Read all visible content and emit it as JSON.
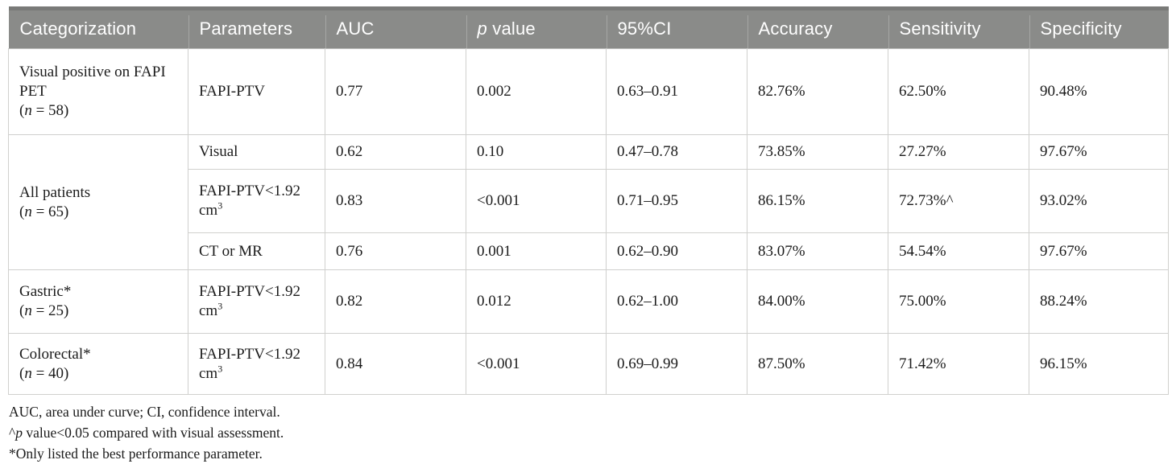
{
  "table": {
    "headers": [
      [
        {
          "t": "Categorization"
        }
      ],
      [
        {
          "t": "Parameters"
        }
      ],
      [
        {
          "t": "AUC"
        }
      ],
      [
        {
          "t": "p",
          "i": true
        },
        {
          "t": " value"
        }
      ],
      [
        {
          "t": "95%CI"
        }
      ],
      [
        {
          "t": "Accuracy"
        }
      ],
      [
        {
          "t": "Sensitivity"
        }
      ],
      [
        {
          "t": "Specificity"
        }
      ]
    ],
    "groups": [
      {
        "category": "Visual positive on FAPI PET",
        "n_label": "(n = 58)",
        "rows": [
          {
            "parameter": "FAPI-PTV",
            "auc": "0.77",
            "p_value": "0.002",
            "ci_95": "0.63–0.91",
            "accuracy": "82.76%",
            "sensitivity": "62.50%",
            "specificity": "90.48%"
          }
        ]
      },
      {
        "category": "All patients",
        "n_label": "(n = 65)",
        "rows": [
          {
            "parameter": "Visual",
            "auc": "0.62",
            "p_value": "0.10",
            "ci_95": "0.47–0.78",
            "accuracy": "73.85%",
            "sensitivity": "27.27%",
            "specificity": "97.67%"
          },
          {
            "parameter": "FAPI-PTV<1.92 cm",
            "parameter_sup": "3",
            "auc": "0.83",
            "p_value": "<0.001",
            "ci_95": "0.71–0.95",
            "accuracy": "86.15%",
            "sensitivity": "72.73%^",
            "specificity": "93.02%"
          },
          {
            "parameter": "CT or MR",
            "auc": "0.76",
            "p_value": "0.001",
            "ci_95": "0.62–0.90",
            "accuracy": "83.07%",
            "sensitivity": "54.54%",
            "specificity": "97.67%"
          }
        ]
      },
      {
        "category": "Gastric*",
        "n_label": "(n = 25)",
        "rows": [
          {
            "parameter": "FAPI-PTV<1.92 cm",
            "parameter_sup": "3",
            "auc": "0.82",
            "p_value": "0.012",
            "ci_95": "0.62–1.00",
            "accuracy": "84.00%",
            "sensitivity": "75.00%",
            "specificity": "88.24%"
          }
        ]
      },
      {
        "category": "Colorectal*",
        "n_label": "(n = 40)",
        "rows": [
          {
            "parameter": "FAPI-PTV<1.92 cm",
            "parameter_sup": "3",
            "auc": "0.84",
            "p_value": "<0.001",
            "ci_95": "0.69–0.99",
            "accuracy": "87.50%",
            "sensitivity": "71.42%",
            "specificity": "96.15%"
          }
        ]
      }
    ],
    "footnotes": [
      [
        {
          "t": "AUC, area under curve; CI, confidence interval."
        }
      ],
      [
        {
          "t": "^"
        },
        {
          "t": "p",
          "i": true
        },
        {
          "t": " value<0.05 compared with visual assessment."
        }
      ],
      [
        {
          "t": "*Only listed the best performance parameter."
        }
      ]
    ],
    "colors": {
      "header_bg": "#8a8b89",
      "header_top_border": "#797a78",
      "header_text": "#ffffff",
      "grid_line": "#d0d0ce",
      "group_line": "#bcbcba",
      "body_text": "#1b1b1b"
    }
  }
}
